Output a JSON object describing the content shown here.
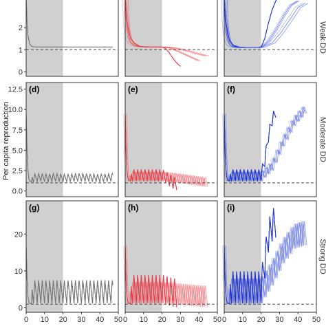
{
  "chart_data": {
    "type": "line",
    "layout": "3x3 facet grid",
    "ylabel": "Per capita reproduction",
    "xlabel": "",
    "x_ticks": [
      "0",
      "10",
      "20",
      "30",
      "40",
      "50"
    ],
    "xlim": [
      0,
      50
    ],
    "shaded_x_range": [
      0,
      20
    ],
    "reference_line_y": 1,
    "reference_line_style": "dashed",
    "grid": false,
    "legend": "none",
    "column_colors": [
      "#777777",
      "#e8404a",
      "#2136d6"
    ],
    "rows": [
      {
        "strip_label": "Weak DD",
        "ylim": [
          -0.2,
          3.3
        ],
        "y_ticks": [
          "0",
          "1",
          "2"
        ],
        "panels": [
          {
            "label": "",
            "pattern": "decay_flat",
            "series": [
              {
                "x": [
                  0,
                  0.5,
                  1,
                  2,
                  3,
                  5,
                  8,
                  12,
                  20,
                  30,
                  40,
                  47
                ],
                "y": [
                  3.5,
                  2.2,
                  1.6,
                  1.25,
                  1.15,
                  1.12,
                  1.12,
                  1.12,
                  1.12,
                  1.12,
                  1.12,
                  1.12
                ]
              }
            ]
          },
          {
            "label": "",
            "pattern": "decay_flat_then_decline",
            "series": [
              {
                "x": [
                  0,
                  0.5,
                  1,
                  2,
                  3,
                  5,
                  8,
                  12,
                  20,
                  22,
                  24,
                  26,
                  28,
                  30
                ],
                "y": [
                  3.5,
                  2.8,
                  2.3,
                  1.8,
                  1.5,
                  1.3,
                  1.15,
                  1.12,
                  1.12,
                  1.05,
                  0.85,
                  0.6,
                  0.4,
                  0.25
                ]
              },
              {
                "x": [
                  0,
                  0.5,
                  1,
                  2,
                  3,
                  5,
                  8,
                  12,
                  20,
                  24,
                  28,
                  32,
                  36,
                  40
                ],
                "y": [
                  3.5,
                  2.6,
                  2.1,
                  1.6,
                  1.35,
                  1.2,
                  1.14,
                  1.12,
                  1.12,
                  1.08,
                  0.95,
                  0.8,
                  0.65,
                  0.5
                ]
              },
              {
                "x": [
                  0,
                  0.5,
                  1,
                  2,
                  3,
                  5,
                  8,
                  12,
                  20,
                  25,
                  30,
                  35,
                  40,
                  44
                ],
                "y": [
                  3.5,
                  2.4,
                  1.9,
                  1.5,
                  1.3,
                  1.18,
                  1.13,
                  1.12,
                  1.12,
                  1.1,
                  1.02,
                  0.92,
                  0.8,
                  0.72
                ]
              }
            ]
          },
          {
            "label": "",
            "pattern": "decay_flat_then_rise",
            "series": [
              {
                "x": [
                  0,
                  0.5,
                  1,
                  2,
                  3,
                  5,
                  8,
                  12,
                  20,
                  22,
                  24,
                  26,
                  28,
                  30
                ],
                "y": [
                  3.5,
                  2.7,
                  2.2,
                  1.7,
                  1.4,
                  1.2,
                  1.12,
                  1.1,
                  1.1,
                  1.5,
                  2.2,
                  2.8,
                  3.2,
                  3.4
                ]
              },
              {
                "x": [
                  0,
                  0.5,
                  1,
                  2,
                  3,
                  5,
                  8,
                  12,
                  20,
                  24,
                  28,
                  32,
                  36,
                  40
                ],
                "y": [
                  3.5,
                  2.5,
                  2.0,
                  1.5,
                  1.3,
                  1.15,
                  1.1,
                  1.1,
                  1.1,
                  1.4,
                  1.9,
                  2.5,
                  3.0,
                  3.2
                ]
              },
              {
                "x": [
                  0,
                  0.5,
                  1,
                  2,
                  3,
                  5,
                  8,
                  12,
                  20,
                  26,
                  31,
                  36,
                  40,
                  44
                ],
                "y": [
                  3.5,
                  2.3,
                  1.8,
                  1.4,
                  1.2,
                  1.12,
                  1.1,
                  1.1,
                  1.1,
                  1.3,
                  1.8,
                  2.4,
                  2.9,
                  3.1
                ]
              }
            ]
          }
        ]
      },
      {
        "strip_label": "Moderate DD",
        "ylim": [
          -0.7,
          13.3
        ],
        "y_ticks": [
          "0.0",
          "2.5",
          "5.0",
          "7.5",
          "10.0",
          "12.5"
        ],
        "panels": [
          {
            "label": "(d)",
            "pattern": "spike_oscillate",
            "series": [
              {
                "x": [
                  0,
                  0.5,
                  1,
                  1.5,
                  2,
                  4,
                  8,
                  12,
                  16,
                  20,
                  30,
                  40,
                  47
                ],
                "y": [
                  9.5,
                  5.0,
                  2.5,
                  1.5,
                  1.2,
                  1.1,
                  1.2,
                  1.1,
                  1.2,
                  1.1,
                  1.2,
                  1.1,
                  1.2
                ],
                "oscillation_amplitude": 1.0
              }
            ]
          },
          {
            "label": "(e)",
            "pattern": "spike_oscillate_then_decline",
            "series": [
              {
                "x": [
                  0,
                  0.5,
                  1,
                  1.5,
                  2,
                  4,
                  8,
                  12,
                  16,
                  20,
                  22,
                  24,
                  26,
                  28
                ],
                "y": [
                  9.5,
                  5.0,
                  2.5,
                  1.6,
                  1.3,
                  1.2,
                  1.2,
                  1.2,
                  1.2,
                  1.2,
                  1.0,
                  0.6,
                  0.3,
                  0.1
                ],
                "oscillation_amplitude": 1.5
              },
              {
                "x": [
                  0,
                  0.5,
                  1,
                  1.5,
                  2,
                  4,
                  8,
                  12,
                  16,
                  20,
                  26,
                  32,
                  38,
                  44
                ],
                "y": [
                  9.5,
                  4.5,
                  2.2,
                  1.5,
                  1.25,
                  1.2,
                  1.2,
                  1.2,
                  1.2,
                  1.2,
                  1.1,
                  0.9,
                  0.7,
                  0.5
                ],
                "oscillation_amplitude": 1.2
              }
            ]
          },
          {
            "label": "(f)",
            "pattern": "spike_oscillate_then_rise",
            "series": [
              {
                "x": [
                  0,
                  0.5,
                  1,
                  1.5,
                  2,
                  4,
                  8,
                  12,
                  16,
                  20,
                  22,
                  24,
                  26,
                  28
                ],
                "y": [
                  9.5,
                  5.0,
                  2.5,
                  1.6,
                  1.3,
                  1.2,
                  1.2,
                  1.2,
                  1.2,
                  1.2,
                  3.0,
                  6.0,
                  8.0,
                  9.0
                ],
                "oscillation_amplitude": 1.5
              },
              {
                "x": [
                  0,
                  0.5,
                  1,
                  1.5,
                  2,
                  4,
                  8,
                  12,
                  16,
                  20,
                  26,
                  32,
                  38,
                  44
                ],
                "y": [
                  9.5,
                  4.5,
                  2.2,
                  1.5,
                  1.25,
                  1.2,
                  1.2,
                  1.2,
                  1.2,
                  1.2,
                  2.5,
                  5.5,
                  8.0,
                  9.5
                ],
                "oscillation_amplitude": 1.2
              }
            ]
          }
        ]
      },
      {
        "strip_label": "Strong DD",
        "ylim": [
          -1.2,
          29
        ],
        "y_ticks": [
          "0",
          "10",
          "20"
        ],
        "panels": [
          {
            "label": "(g)",
            "pattern": "spike_large_oscillate",
            "series": [
              {
                "x": [
                  0,
                  0.5,
                  1,
                  1.5,
                  2,
                  4,
                  8,
                  12,
                  16,
                  20,
                  30,
                  40,
                  47
                ],
                "y": [
                  17,
                  8,
                  3,
                  1.5,
                  1.2,
                  1.2,
                  1.2,
                  1.2,
                  1.2,
                  1.2,
                  1.2,
                  1.2,
                  1.2
                ],
                "oscillation_amplitude": 6.5
              }
            ]
          },
          {
            "label": "(h)",
            "pattern": "spike_large_oscillate_then_decline",
            "series": [
              {
                "x": [
                  0,
                  0.5,
                  1,
                  1.5,
                  2,
                  4,
                  8,
                  12,
                  16,
                  20,
                  22,
                  24,
                  26,
                  28
                ],
                "y": [
                  17,
                  8,
                  3,
                  1.5,
                  1.2,
                  1.2,
                  1.2,
                  1.2,
                  1.2,
                  1.2,
                  1.0,
                  0.6,
                  0.3,
                  0.1
                ],
                "oscillation_amplitude": 8.0
              },
              {
                "x": [
                  0,
                  0.5,
                  1,
                  1.5,
                  2,
                  4,
                  8,
                  12,
                  16,
                  20,
                  26,
                  32,
                  38,
                  44
                ],
                "y": [
                  17,
                  7,
                  2.8,
                  1.4,
                  1.2,
                  1.2,
                  1.2,
                  1.2,
                  1.2,
                  1.2,
                  1.0,
                  0.7,
                  0.4,
                  0.2
                ],
                "oscillation_amplitude": 6.0
              }
            ]
          },
          {
            "label": "(i)",
            "pattern": "spike_large_oscillate_then_rise",
            "series": [
              {
                "x": [
                  0,
                  0.5,
                  1,
                  1.5,
                  2,
                  4,
                  8,
                  12,
                  16,
                  20,
                  22,
                  24,
                  26,
                  28
                ],
                "y": [
                  17,
                  8,
                  3,
                  1.5,
                  1.2,
                  1.2,
                  1.2,
                  1.2,
                  1.2,
                  1.2,
                  8.0,
                  15.0,
                  18.0,
                  19.0
                ],
                "oscillation_amplitude": 9.0
              },
              {
                "x": [
                  0,
                  0.5,
                  1,
                  1.5,
                  2,
                  4,
                  8,
                  12,
                  16,
                  20,
                  26,
                  32,
                  38,
                  44
                ],
                "y": [
                  17,
                  7,
                  2.8,
                  1.4,
                  1.2,
                  1.2,
                  1.2,
                  1.2,
                  1.2,
                  1.2,
                  6.0,
                  12.0,
                  16.0,
                  17.0
                ],
                "oscillation_amplitude": 7.0
              }
            ]
          }
        ]
      }
    ]
  }
}
